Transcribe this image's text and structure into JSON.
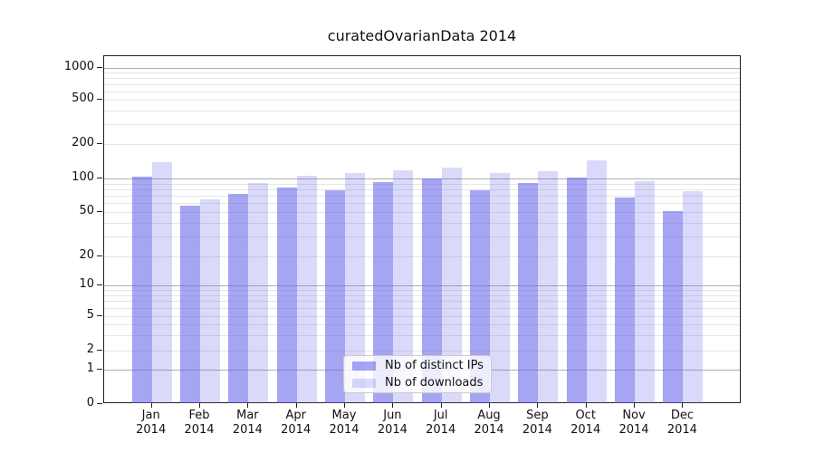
{
  "title": "curatedOvarianData 2014",
  "chart_data": {
    "type": "bar",
    "title": "curatedOvarianData 2014",
    "categories": [
      "Jan 2014",
      "Feb 2014",
      "Mar 2014",
      "Apr 2014",
      "May 2014",
      "Jun 2014",
      "Jul 2014",
      "Aug 2014",
      "Sep 2014",
      "Oct 2014",
      "Nov 2014",
      "Dec 2014"
    ],
    "series": [
      {
        "name": "Nb of distinct IPs",
        "color": "rgba(91,91,232,0.55)",
        "color_hex": "#a5a5f1",
        "values": [
          105,
          57,
          73,
          84,
          78,
          94,
          101,
          78,
          91,
          102,
          67,
          51
        ]
      },
      {
        "name": "Nb of downloads",
        "color": "rgba(91,91,232,0.23)",
        "color_hex": "#d9d9f8",
        "values": [
          140,
          65,
          92,
          107,
          112,
          119,
          125,
          112,
          117,
          145,
          95,
          77
        ]
      }
    ],
    "y_axis": {
      "ticks": [
        0,
        1,
        2,
        5,
        10,
        20,
        50,
        100,
        200,
        500,
        1000
      ],
      "scale": "pseudo-log with 0 baseline",
      "range": [
        0,
        1400
      ]
    },
    "grid": {
      "on": true,
      "major": [
        1,
        10,
        100,
        1000
      ],
      "minor": [
        2,
        3,
        4,
        5,
        6,
        7,
        8,
        9,
        20,
        30,
        40,
        50,
        60,
        70,
        80,
        90,
        200,
        300,
        400,
        500,
        600,
        700,
        800,
        900
      ],
      "major_color": "#b0b0b0",
      "minor_color": "#e6e6e6"
    },
    "legend": {
      "position": "inside-bottom-center",
      "entries": [
        "Nb of distinct IPs",
        "Nb of downloads"
      ]
    }
  }
}
